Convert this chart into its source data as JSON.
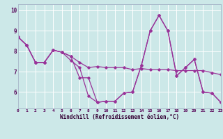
{
  "xlabel": "Windchill (Refroidissement éolien,°C)",
  "background_color": "#cce8e8",
  "grid_color": "#ffffff",
  "line_color": "#993399",
  "x_hours": [
    0,
    1,
    2,
    3,
    4,
    5,
    6,
    7,
    8,
    9,
    10,
    11,
    12,
    13,
    14,
    15,
    16,
    17,
    18,
    19,
    20,
    21,
    22,
    23
  ],
  "series1": [
    8.7,
    8.3,
    7.45,
    7.45,
    8.05,
    7.95,
    7.75,
    7.45,
    7.2,
    7.25,
    7.2,
    7.2,
    7.2,
    7.1,
    7.15,
    7.1,
    7.1,
    7.1,
    7.05,
    7.05,
    7.05,
    7.05,
    6.95,
    6.85
  ],
  "series2": [
    8.7,
    8.3,
    7.45,
    7.45,
    8.05,
    7.95,
    7.75,
    6.7,
    6.7,
    5.5,
    5.55,
    5.55,
    5.95,
    6.0,
    7.3,
    9.0,
    9.75,
    9.0,
    6.8,
    7.2,
    7.6,
    6.0,
    5.95,
    5.5
  ],
  "series3": [
    8.7,
    8.3,
    7.45,
    7.45,
    8.05,
    7.95,
    7.55,
    7.2,
    5.8,
    5.5,
    5.55,
    5.55,
    5.95,
    6.0,
    7.3,
    9.0,
    9.75,
    9.0,
    6.8,
    7.2,
    7.6,
    6.0,
    5.95,
    5.5
  ],
  "xlim": [
    0,
    23
  ],
  "ylim": [
    5.2,
    10.3
  ],
  "yticks": [
    6,
    7,
    8,
    9,
    10
  ],
  "xtick_labels": [
    "0",
    "1",
    "2",
    "3",
    "4",
    "5",
    "6",
    "7",
    "8",
    "9",
    "10",
    "11",
    "12",
    "13",
    "14",
    "15",
    "16",
    "17",
    "18",
    "19",
    "20",
    "21",
    "22",
    "23"
  ]
}
